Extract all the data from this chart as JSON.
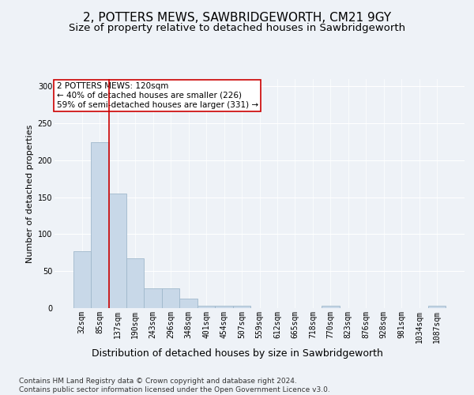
{
  "title1": "2, POTTERS MEWS, SAWBRIDGEWORTH, CM21 9GY",
  "title2": "Size of property relative to detached houses in Sawbridgeworth",
  "xlabel": "Distribution of detached houses by size in Sawbridgeworth",
  "ylabel": "Number of detached properties",
  "categories": [
    "32sqm",
    "85sqm",
    "137sqm",
    "190sqm",
    "243sqm",
    "296sqm",
    "348sqm",
    "401sqm",
    "454sqm",
    "507sqm",
    "559sqm",
    "612sqm",
    "665sqm",
    "718sqm",
    "770sqm",
    "823sqm",
    "876sqm",
    "928sqm",
    "981sqm",
    "1034sqm",
    "1087sqm"
  ],
  "values": [
    77,
    224,
    155,
    67,
    27,
    27,
    13,
    3,
    3,
    3,
    0,
    0,
    0,
    0,
    3,
    0,
    0,
    0,
    0,
    0,
    3
  ],
  "bar_color": "#c8d8e8",
  "bar_edgecolor": "#a0b8cc",
  "vline_x_index": 1.5,
  "vline_color": "#cc0000",
  "annotation_text": "2 POTTERS MEWS: 120sqm\n← 40% of detached houses are smaller (226)\n59% of semi-detached houses are larger (331) →",
  "annotation_box_color": "#ffffff",
  "annotation_box_edgecolor": "#cc0000",
  "ylim": [
    0,
    310
  ],
  "yticks": [
    0,
    50,
    100,
    150,
    200,
    250,
    300
  ],
  "footer": "Contains HM Land Registry data © Crown copyright and database right 2024.\nContains public sector information licensed under the Open Government Licence v3.0.",
  "bg_color": "#eef2f7",
  "plot_bg_color": "#eef2f7",
  "title1_fontsize": 11,
  "title2_fontsize": 9.5,
  "tick_fontsize": 7,
  "xlabel_fontsize": 9,
  "ylabel_fontsize": 8,
  "footer_fontsize": 6.5,
  "annotation_fontsize": 7.5
}
